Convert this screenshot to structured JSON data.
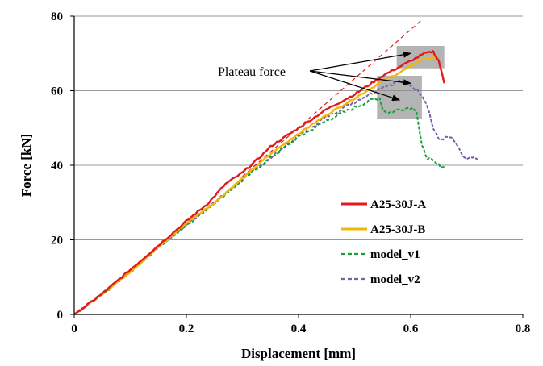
{
  "chart_data": {
    "type": "line",
    "title": "",
    "xlabel": "Displacement [mm]",
    "ylabel": "Force [kN]",
    "xlim": [
      0,
      0.8
    ],
    "ylim": [
      0,
      80
    ],
    "x_ticks": [
      "0",
      "0.2",
      "0.4",
      "0.6",
      "0.8"
    ],
    "y_ticks": [
      "0",
      "20",
      "40",
      "60",
      "80"
    ],
    "grid": "horizontal",
    "legend_position": "lower-right",
    "annotation": "Plateau force",
    "series": [
      {
        "name": "A25-30J-A",
        "color": "#e31a1c",
        "style": "solid",
        "points": [
          [
            0,
            0
          ],
          [
            0.05,
            5.5
          ],
          [
            0.1,
            12
          ],
          [
            0.15,
            18.5
          ],
          [
            0.2,
            25
          ],
          [
            0.24,
            30
          ],
          [
            0.27,
            35
          ],
          [
            0.3,
            38
          ],
          [
            0.33,
            42
          ],
          [
            0.35,
            45
          ],
          [
            0.4,
            50
          ],
          [
            0.45,
            55
          ],
          [
            0.5,
            59
          ],
          [
            0.55,
            64
          ],
          [
            0.6,
            68
          ],
          [
            0.625,
            70
          ],
          [
            0.64,
            70.5
          ],
          [
            0.65,
            68
          ],
          [
            0.655,
            65
          ],
          [
            0.66,
            62
          ]
        ]
      },
      {
        "name": "A25-30J-B",
        "color": "#f2b705",
        "style": "solid",
        "points": [
          [
            0,
            0
          ],
          [
            0.05,
            5.5
          ],
          [
            0.1,
            11.5
          ],
          [
            0.15,
            18
          ],
          [
            0.2,
            24.5
          ],
          [
            0.25,
            30
          ],
          [
            0.3,
            36.5
          ],
          [
            0.35,
            43
          ],
          [
            0.4,
            48.5
          ],
          [
            0.45,
            53.5
          ],
          [
            0.5,
            58
          ],
          [
            0.55,
            62.5
          ],
          [
            0.6,
            66.5
          ],
          [
            0.62,
            68.5
          ],
          [
            0.64,
            69
          ],
          [
            0.65,
            68
          ]
        ]
      },
      {
        "name": "model_v1",
        "color": "#1a9e3c",
        "style": "dashed",
        "points": [
          [
            0,
            0
          ],
          [
            0.05,
            5.5
          ],
          [
            0.1,
            11.5
          ],
          [
            0.15,
            18
          ],
          [
            0.2,
            24
          ],
          [
            0.25,
            30
          ],
          [
            0.3,
            36
          ],
          [
            0.35,
            42
          ],
          [
            0.4,
            47.5
          ],
          [
            0.45,
            52
          ],
          [
            0.5,
            55.5
          ],
          [
            0.53,
            57.5
          ],
          [
            0.545,
            58
          ],
          [
            0.55,
            55
          ],
          [
            0.56,
            54
          ],
          [
            0.58,
            55
          ],
          [
            0.6,
            55.5
          ],
          [
            0.61,
            55
          ],
          [
            0.615,
            50
          ],
          [
            0.62,
            45
          ],
          [
            0.63,
            42
          ],
          [
            0.64,
            41
          ],
          [
            0.65,
            40
          ],
          [
            0.66,
            39.5
          ]
        ]
      },
      {
        "name": "model_v2",
        "color": "#7b5ea7",
        "style": "dashed",
        "points": [
          [
            0,
            0
          ],
          [
            0.05,
            5.5
          ],
          [
            0.1,
            11.5
          ],
          [
            0.15,
            18
          ],
          [
            0.2,
            24
          ],
          [
            0.25,
            30
          ],
          [
            0.3,
            36
          ],
          [
            0.35,
            42
          ],
          [
            0.4,
            48
          ],
          [
            0.45,
            53
          ],
          [
            0.5,
            57
          ],
          [
            0.55,
            61
          ],
          [
            0.58,
            62.5
          ],
          [
            0.6,
            61.5
          ],
          [
            0.62,
            59
          ],
          [
            0.63,
            56
          ],
          [
            0.64,
            50
          ],
          [
            0.65,
            47
          ],
          [
            0.67,
            47.5
          ],
          [
            0.68,
            46
          ],
          [
            0.69,
            43
          ],
          [
            0.7,
            41.5
          ],
          [
            0.71,
            42
          ],
          [
            0.72,
            41.5
          ]
        ]
      }
    ],
    "reference_line": {
      "color": "#e31a1c",
      "style": "dashed",
      "points": [
        [
          0.3,
          37
        ],
        [
          0.62,
          79
        ]
      ]
    },
    "plateau_boxes": [
      {
        "x": [
          0.575,
          0.66
        ],
        "y": [
          66,
          72
        ]
      },
      {
        "x": [
          0.54,
          0.62
        ],
        "y": [
          52.5,
          64
        ]
      }
    ],
    "arrow_targets": [
      [
        0.6,
        70
      ],
      [
        0.6,
        62
      ],
      [
        0.58,
        57.5
      ]
    ]
  }
}
